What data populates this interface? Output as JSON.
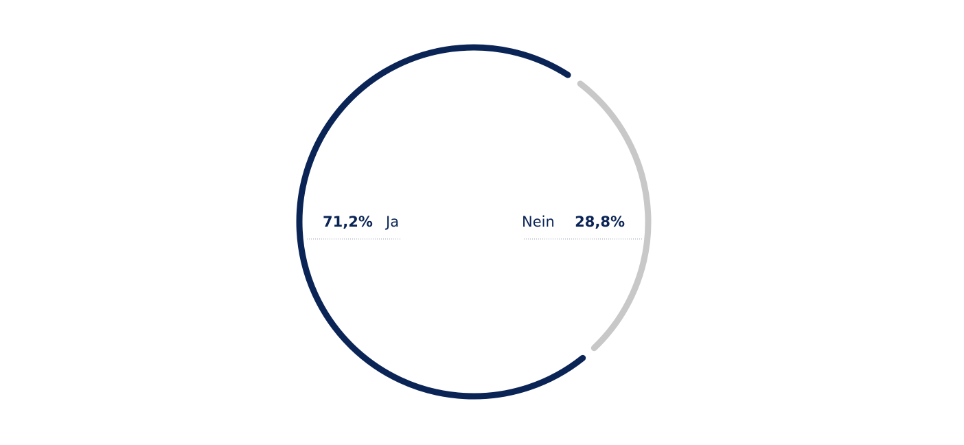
{
  "chart_data": {
    "type": "donut",
    "categories": [
      "Ja",
      "Nein"
    ],
    "values": [
      71.2,
      28.8
    ],
    "value_labels": [
      "71,2%",
      "28,8%"
    ],
    "colors": [
      "#0b2456",
      "#c8c8c8"
    ]
  }
}
